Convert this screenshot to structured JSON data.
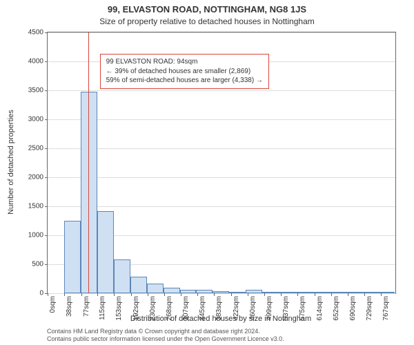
{
  "title_line1": "99, ELVASTON ROAD, NOTTINGHAM, NG8 1JS",
  "title_line2": "Size of property relative to detached houses in Nottingham",
  "y_axis_title": "Number of detached properties",
  "x_axis_title": "Distribution of detached houses by size in Nottingham",
  "credits_line1": "Contains HM Land Registry data © Crown copyright and database right 2024.",
  "credits_line2": "Contains public sector information licensed under the Open Government Licence v3.0.",
  "chart": {
    "type": "histogram",
    "background_color": "#ffffff",
    "grid_color": "#dcdcdc",
    "axis_color": "#666666",
    "bar_fill": "#cfe0f3",
    "bar_stroke": "#5b86b8",
    "marker_color": "#d9453a",
    "annot_border": "#d9453a",
    "annot_bg": "#ffffff",
    "label_color": "#333333",
    "ylim": [
      0,
      4500
    ],
    "ytick_step": 500,
    "yticks": [
      0,
      500,
      1000,
      1500,
      2000,
      2500,
      3000,
      3500,
      4000,
      4500
    ],
    "xlim": [
      0,
      800
    ],
    "bar_width_sqm": 38,
    "bars": [
      {
        "x0": 38,
        "x1": 76,
        "count": 1250
      },
      {
        "x0": 76,
        "x1": 114,
        "count": 3480
      },
      {
        "x0": 114,
        "x1": 152,
        "count": 1420
      },
      {
        "x0": 152,
        "x1": 190,
        "count": 580
      },
      {
        "x0": 190,
        "x1": 228,
        "count": 280
      },
      {
        "x0": 228,
        "x1": 266,
        "count": 170
      },
      {
        "x0": 266,
        "x1": 304,
        "count": 90
      },
      {
        "x0": 304,
        "x1": 342,
        "count": 60
      },
      {
        "x0": 342,
        "x1": 380,
        "count": 55
      },
      {
        "x0": 380,
        "x1": 418,
        "count": 38
      },
      {
        "x0": 418,
        "x1": 456,
        "count": 20
      },
      {
        "x0": 456,
        "x1": 494,
        "count": 60
      },
      {
        "x0": 494,
        "x1": 532,
        "count": 8
      },
      {
        "x0": 532,
        "x1": 570,
        "count": 4
      },
      {
        "x0": 570,
        "x1": 608,
        "count": 2
      },
      {
        "x0": 608,
        "x1": 646,
        "count": 2
      },
      {
        "x0": 646,
        "x1": 684,
        "count": 2
      },
      {
        "x0": 684,
        "x1": 722,
        "count": 2
      },
      {
        "x0": 722,
        "x1": 760,
        "count": 2
      },
      {
        "x0": 760,
        "x1": 798,
        "count": 2
      }
    ],
    "xtick_labels": [
      "0sqm",
      "38sqm",
      "77sqm",
      "115sqm",
      "153sqm",
      "192sqm",
      "230sqm",
      "268sqm",
      "307sqm",
      "345sqm",
      "383sqm",
      "422sqm",
      "460sqm",
      "499sqm",
      "537sqm",
      "575sqm",
      "614sqm",
      "652sqm",
      "690sqm",
      "729sqm",
      "767sqm"
    ],
    "xtick_positions_sqm": [
      0,
      38,
      77,
      115,
      153,
      192,
      230,
      268,
      307,
      345,
      383,
      422,
      460,
      499,
      537,
      575,
      614,
      652,
      690,
      729,
      767
    ],
    "marker_sqm": 94,
    "annotation": {
      "line1": "99 ELVASTON ROAD: 94sqm",
      "line2": "← 39% of detached houses are smaller (2,869)",
      "line3": "59% of semi-detached houses are larger (4,338) →",
      "x_sqm": 120,
      "y_val": 4130
    },
    "label_fontsize": 10,
    "title_fontsize": 13,
    "axis_title_fontsize": 11
  }
}
